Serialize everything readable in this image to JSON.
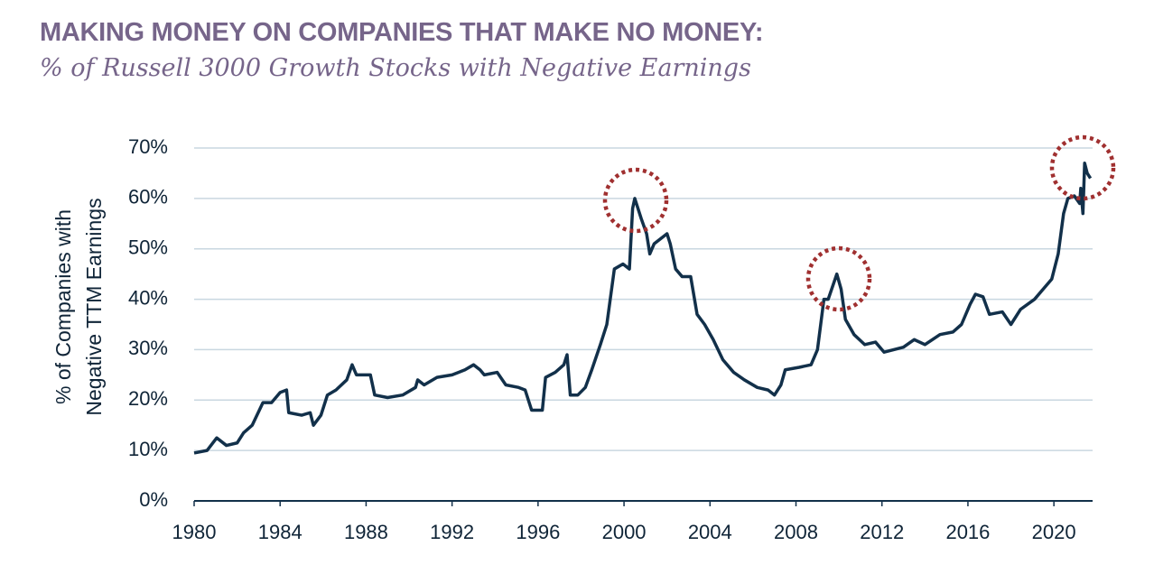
{
  "chart_data": {
    "type": "line",
    "title": "MAKING MONEY ON COMPANIES THAT MAKE NO MONEY:",
    "subtitle": "% of Russell 3000 Growth Stocks with Negative Earnings",
    "ylabel": [
      "% of Companies with",
      "Negative TTM Earnings"
    ],
    "color": "#12304a",
    "grid": true,
    "xlim": [
      1980,
      2021.8
    ],
    "xticks": [
      1980,
      1984,
      1988,
      1992,
      1996,
      2000,
      2004,
      2008,
      2012,
      2016,
      2020
    ],
    "ylim": [
      0,
      70
    ],
    "yticks": [
      {
        "value": 0,
        "label": "0%"
      },
      {
        "value": 10,
        "label": "10%"
      },
      {
        "value": 20,
        "label": "20%"
      },
      {
        "value": 30,
        "label": "30%"
      },
      {
        "value": 40,
        "label": "40%"
      },
      {
        "value": 50,
        "label": "50%"
      },
      {
        "value": 60,
        "label": "60%"
      },
      {
        "value": 70,
        "label": "70%"
      }
    ],
    "x": [
      1980.0,
      1980.6,
      1981.05,
      1981.5,
      1982.0,
      1982.3,
      1982.7,
      1983.2,
      1983.6,
      1984.0,
      1984.3,
      1984.4,
      1985.0,
      1985.4,
      1985.55,
      1985.9,
      1986.2,
      1986.6,
      1987.1,
      1987.35,
      1987.55,
      1988.2,
      1988.4,
      1989.0,
      1989.7,
      1990.3,
      1990.4,
      1990.7,
      1991.3,
      1992.0,
      1992.6,
      1993.0,
      1993.3,
      1993.5,
      1994.1,
      1994.5,
      1995.1,
      1995.4,
      1995.7,
      1996.2,
      1996.35,
      1996.8,
      1997.2,
      1997.35,
      1997.5,
      1997.85,
      1998.2,
      1998.5,
      1998.9,
      1999.2,
      1999.55,
      1999.95,
      2000.25,
      2000.4,
      2000.5,
      2000.8,
      2001.05,
      2001.2,
      2001.4,
      2002.0,
      2002.15,
      2002.4,
      2002.7,
      2003.1,
      2003.4,
      2003.75,
      2004.15,
      2004.6,
      2005.1,
      2005.6,
      2006.2,
      2006.7,
      2007.0,
      2007.3,
      2007.5,
      2008.15,
      2008.7,
      2009.0,
      2009.3,
      2009.5,
      2009.9,
      2010.1,
      2010.3,
      2010.7,
      2011.2,
      2011.7,
      2012.1,
      2013.0,
      2013.5,
      2014.0,
      2014.7,
      2015.3,
      2015.7,
      2016.1,
      2016.35,
      2016.7,
      2017.0,
      2017.6,
      2018.0,
      2018.45,
      2019.1,
      2019.5,
      2019.9,
      2020.2,
      2020.45,
      2020.65,
      2020.95,
      2021.2,
      2021.25,
      2021.35,
      2021.43,
      2021.55,
      2021.7
    ],
    "values": [
      9.5,
      10,
      12.5,
      11,
      11.5,
      13.5,
      15,
      19.5,
      19.5,
      21.5,
      22,
      17.5,
      17,
      17.5,
      15,
      17,
      21,
      22,
      24,
      27,
      25,
      25,
      21,
      20.5,
      21,
      22.5,
      24,
      23,
      24.5,
      25,
      26,
      27,
      26,
      25,
      25.5,
      23,
      22.5,
      22,
      18,
      18,
      24.5,
      25.5,
      27,
      29,
      21,
      21,
      22.5,
      26,
      31,
      35,
      46,
      47,
      46,
      58,
      60,
      56,
      53,
      49,
      51,
      53,
      51,
      46,
      44.5,
      44.5,
      37,
      35,
      32,
      28,
      25.5,
      24,
      22.5,
      22,
      21,
      23,
      26,
      26.5,
      27,
      30,
      40,
      40,
      45,
      42,
      36,
      33,
      31,
      31.5,
      29.5,
      30.5,
      32,
      31,
      33,
      33.5,
      35,
      39,
      41,
      40.5,
      37,
      37.5,
      35,
      38,
      40,
      42,
      44,
      49,
      57,
      60,
      60.5,
      59,
      62,
      57,
      67,
      65,
      64
    ]
  }
}
